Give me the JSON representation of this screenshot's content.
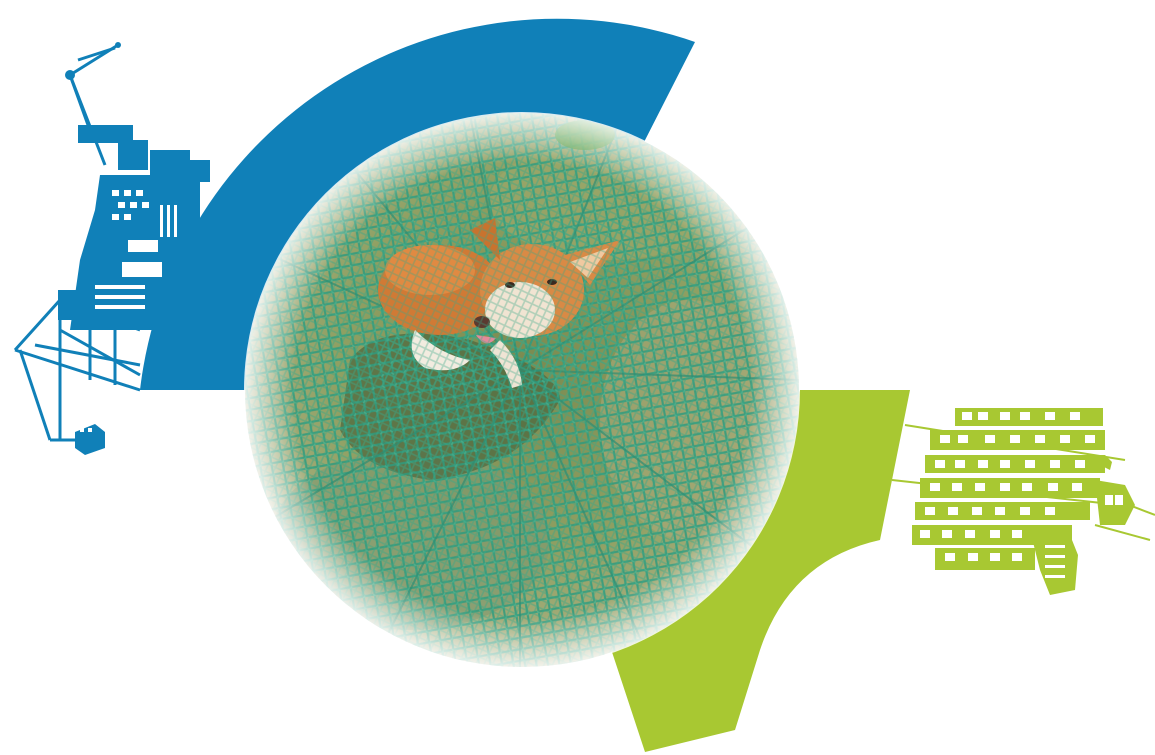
{
  "colors": {
    "background": "#ffffff",
    "blue_arc": "#1080b8",
    "green_arc": "#a8c832",
    "crane_icon": "#1080b8",
    "ship_icon": "#a8c832",
    "photo_net": "#3a9a78",
    "photo_ground": "#8a9a60",
    "photo_dog": "#d8843c"
  },
  "graphics": {
    "decor_left": "port-crane-icon",
    "decor_right": "container-ship-icon",
    "photo_subject": "dog-in-fishing-net"
  }
}
